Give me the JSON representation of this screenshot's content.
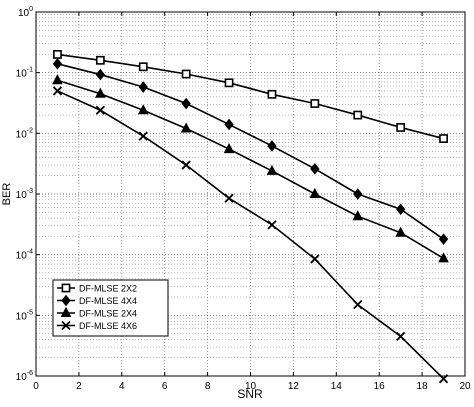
{
  "chart_data": {
    "type": "line",
    "title": "",
    "xlabel": "SNR",
    "ylabel": "BER",
    "xlim": [
      0,
      20
    ],
    "ylim": [
      1e-06,
      1
    ],
    "yscale": "log",
    "grid": true,
    "legend_position": "bottom-left",
    "xticks": [
      "0",
      "2",
      "4",
      "6",
      "8",
      "10",
      "12",
      "14",
      "16",
      "18",
      "20"
    ],
    "yticks": [
      {
        "base": "10",
        "exp": "0"
      },
      {
        "base": "10",
        "exp": "-1"
      },
      {
        "base": "10",
        "exp": "-2"
      },
      {
        "base": "10",
        "exp": "-3"
      },
      {
        "base": "10",
        "exp": "-4"
      },
      {
        "base": "10",
        "exp": "-5"
      },
      {
        "base": "10",
        "exp": "-6"
      }
    ],
    "x": [
      1,
      3,
      5,
      7,
      9,
      11,
      13,
      15,
      17,
      19
    ],
    "series": [
      {
        "name": "DF-MLSE 2X2",
        "marker": "square",
        "values": [
          0.2,
          0.16,
          0.125,
          0.095,
          0.068,
          0.044,
          0.031,
          0.02,
          0.0125,
          0.0082
        ]
      },
      {
        "name": "DF-MLSE 4X4",
        "marker": "diamond",
        "values": [
          0.14,
          0.093,
          0.058,
          0.031,
          0.014,
          0.0062,
          0.0026,
          0.001,
          0.00056,
          0.00018
        ]
      },
      {
        "name": "DF-MLSE  2X4",
        "marker": "triangle",
        "values": [
          0.075,
          0.045,
          0.024,
          0.012,
          0.0055,
          0.0024,
          0.001,
          0.00043,
          0.00023,
          8.7e-05
        ]
      },
      {
        "name": "DF-MLSE 4X6",
        "marker": "cross",
        "values": [
          0.05,
          0.024,
          0.009,
          0.003,
          0.00085,
          0.00031,
          8.5e-05,
          1.5e-05,
          4.5e-06,
          9e-07
        ]
      }
    ]
  }
}
